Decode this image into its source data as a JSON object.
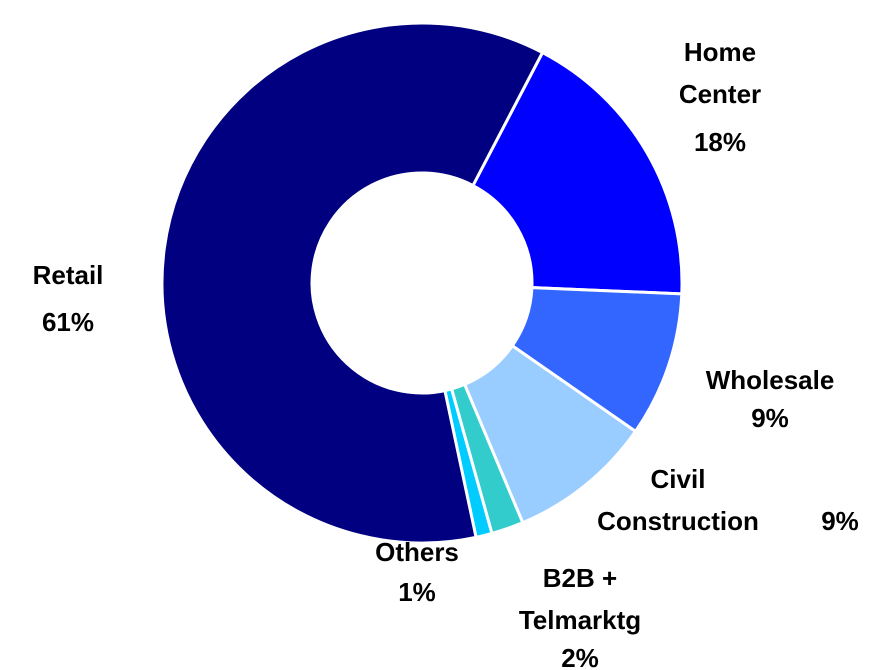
{
  "chart_data": {
    "type": "donut",
    "categories": [
      "Home Center",
      "Wholesale",
      "Civil Construction",
      "B2B + Telmarktg",
      "Others",
      "Retail"
    ],
    "values": [
      18,
      9,
      9,
      2,
      1,
      61
    ],
    "value_labels": [
      "18%",
      "9%",
      "9%",
      "2%",
      "1%",
      "61%"
    ],
    "colors": [
      "#0000FF",
      "#3366FF",
      "#99CCFF",
      "#33CCCC",
      "#00CCFF",
      "#000080"
    ]
  }
}
